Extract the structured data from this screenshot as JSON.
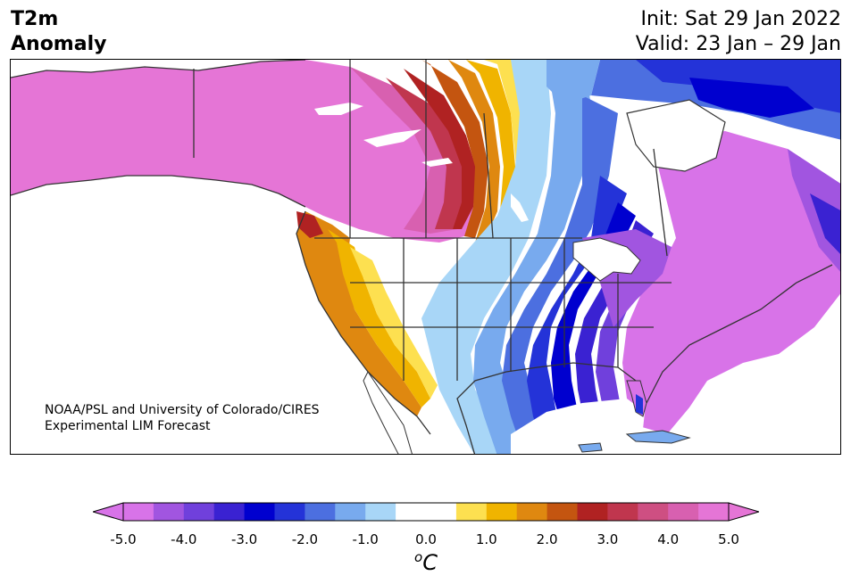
{
  "title": {
    "line1": "T2m",
    "line2": "Anomaly",
    "init": "Init: Sat 29 Jan 2022",
    "valid": "Valid: 23 Jan – 29 Jan"
  },
  "credit": {
    "line1": "NOAA/PSL and University of Colorado/CIRES",
    "line2": "Experimental LIM Forecast"
  },
  "colorbar": {
    "colors": [
      "#d873e8",
      "#a155e0",
      "#7040dc",
      "#3a22d2",
      "#0000cf",
      "#2433d8",
      "#4c6fe0",
      "#78aaee",
      "#a8d6f7",
      "#ffffff",
      "#ffffff",
      "#fde050",
      "#f0b400",
      "#df8810",
      "#c45510",
      "#b02222",
      "#c0364e",
      "#ce4f82",
      "#d860b0",
      "#e575d6"
    ],
    "ticks": [
      "-5.0",
      "-4.0",
      "-3.0",
      "-2.0",
      "-1.0",
      "0.0",
      "1.0",
      "2.0",
      "3.0",
      "4.0",
      "5.0"
    ],
    "unit_super": "o",
    "unit": "C",
    "range": [
      -5.0,
      5.0
    ],
    "extend": "both"
  },
  "map": {
    "projection": "conic",
    "region": "North America",
    "variable": "2 m temperature anomaly"
  }
}
